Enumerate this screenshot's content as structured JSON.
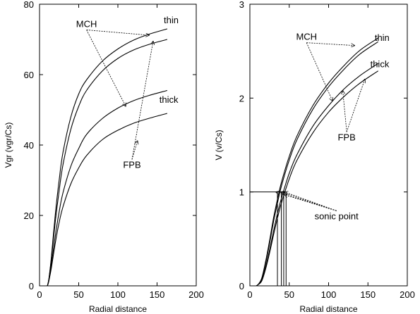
{
  "chart_data": [
    {
      "type": "line",
      "xlabel": "Radial distance",
      "ylabel": "Vgr  (vgr/Cs)",
      "xlim": [
        0,
        200
      ],
      "ylim": [
        0,
        80
      ],
      "xticks": [
        0,
        50,
        100,
        150,
        200
      ],
      "yticks": [
        0,
        20,
        40,
        60,
        80
      ],
      "series": [
        {
          "x": [
            10,
            12,
            15,
            20,
            25,
            30,
            40,
            50,
            60,
            80,
            100,
            120,
            140,
            163
          ],
          "y": [
            0,
            2,
            8,
            20,
            30,
            38,
            48,
            54.5,
            58.5,
            63.8,
            67.3,
            69.8,
            71.5,
            73
          ]
        },
        {
          "x": [
            10,
            12,
            15,
            20,
            25,
            30,
            40,
            50,
            60,
            80,
            100,
            120,
            140,
            163
          ],
          "y": [
            0,
            2,
            7.5,
            18,
            27,
            34.5,
            44.5,
            51,
            55.5,
            61,
            64.6,
            67,
            68.6,
            70
          ]
        },
        {
          "x": [
            10,
            12,
            15,
            20,
            25,
            30,
            40,
            50,
            60,
            80,
            100,
            120,
            140,
            163
          ],
          "y": [
            0,
            1.5,
            6,
            14,
            21,
            26.5,
            34,
            39,
            43,
            47.5,
            50.5,
            52.6,
            54.1,
            55.5
          ]
        },
        {
          "x": [
            10,
            12,
            15,
            20,
            25,
            30,
            40,
            50,
            60,
            80,
            100,
            120,
            140,
            163
          ],
          "y": [
            0,
            1.5,
            5,
            12,
            18,
            22.5,
            29,
            33.5,
            37,
            41.5,
            44.2,
            46.2,
            47.6,
            49
          ]
        }
      ],
      "annotations": [
        {
          "text": "MCH",
          "x": 60,
          "y": 73.5,
          "targets": [
            [
              140,
              71.2
            ],
            [
              110,
              51
            ]
          ]
        },
        {
          "text": "thin",
          "x": 168,
          "y": 74.6
        },
        {
          "text": "thick",
          "x": 165,
          "y": 52
        },
        {
          "text": "FPB",
          "x": 118,
          "y": 33.5,
          "targets": [
            [
              145,
              69.5
            ],
            [
              125,
              41.2
            ]
          ]
        }
      ]
    },
    {
      "type": "line",
      "xlabel": "Radial distance",
      "ylabel": "V  (v/Cs)",
      "xlim": [
        0,
        200
      ],
      "ylim": [
        0,
        3
      ],
      "xticks": [
        0,
        50,
        100,
        150,
        200
      ],
      "yticks": [
        0,
        1,
        2,
        3
      ],
      "series": [
        {
          "x": [
            8,
            10,
            15,
            20,
            25,
            30,
            35,
            40,
            50,
            60,
            80,
            100,
            120,
            140,
            163
          ],
          "y": [
            0,
            0.01,
            0.08,
            0.26,
            0.48,
            0.72,
            0.92,
            1.1,
            1.38,
            1.6,
            1.92,
            2.16,
            2.35,
            2.51,
            2.64
          ]
        },
        {
          "x": [
            8,
            10,
            15,
            20,
            25,
            30,
            35,
            40,
            50,
            60,
            80,
            100,
            120,
            140,
            163
          ],
          "y": [
            0,
            0.01,
            0.07,
            0.24,
            0.45,
            0.68,
            0.88,
            1.06,
            1.34,
            1.56,
            1.88,
            2.12,
            2.31,
            2.47,
            2.6
          ]
        },
        {
          "x": [
            8,
            10,
            15,
            20,
            25,
            30,
            35,
            40,
            50,
            60,
            80,
            100,
            120,
            140,
            163
          ],
          "y": [
            0,
            0.01,
            0.06,
            0.2,
            0.38,
            0.58,
            0.77,
            0.93,
            1.2,
            1.4,
            1.7,
            1.92,
            2.1,
            2.24,
            2.37
          ]
        },
        {
          "x": [
            8,
            10,
            15,
            20,
            25,
            30,
            35,
            40,
            50,
            60,
            80,
            100,
            120,
            140,
            163
          ],
          "y": [
            0,
            0.01,
            0.05,
            0.18,
            0.35,
            0.54,
            0.72,
            0.88,
            1.14,
            1.34,
            1.63,
            1.85,
            2.02,
            2.16,
            2.29
          ]
        }
      ],
      "reference_lines": [
        {
          "y": 1,
          "x_from": 0,
          "x_to": 45
        },
        {
          "x": 35,
          "y_from": 0,
          "y_to": 1
        },
        {
          "x": 40,
          "y_from": 0,
          "y_to": 1
        },
        {
          "x": 43,
          "y_from": 0,
          "y_to": 1
        },
        {
          "x": 46,
          "y_from": 0,
          "y_to": 1
        }
      ],
      "annotations": [
        {
          "text": "MCH",
          "x": 72,
          "y": 2.62,
          "targets": [
            [
              133,
              2.56
            ],
            [
              105,
              1.97
            ]
          ]
        },
        {
          "text": "thin",
          "x": 168,
          "y": 2.61
        },
        {
          "text": "thick",
          "x": 165,
          "y": 2.33
        },
        {
          "text": "FPB",
          "x": 123,
          "y": 1.55,
          "targets": [
            [
              146,
              2.2
            ],
            [
              118,
              2.08
            ]
          ]
        },
        {
          "text": "sonic point",
          "x": 110,
          "y": 0.71,
          "targets": [
            [
              33,
              1.0
            ],
            [
              39,
              1.0
            ],
            [
              44,
              0.97
            ],
            [
              44,
              1.0
            ]
          ]
        }
      ]
    }
  ]
}
